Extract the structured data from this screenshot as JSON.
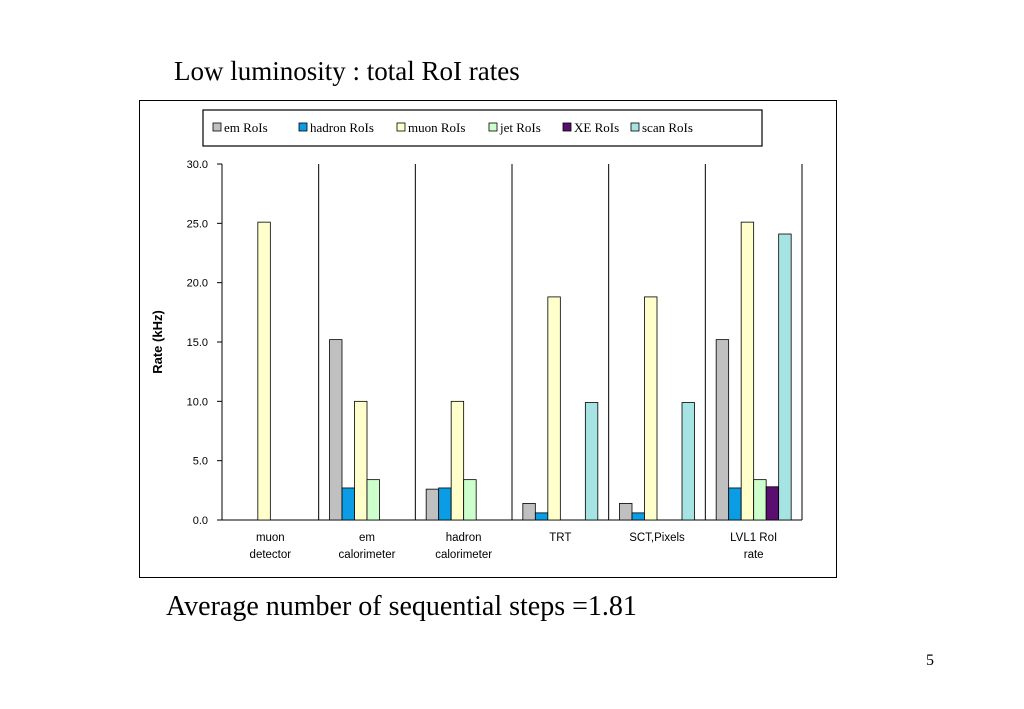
{
  "slide": {
    "title": "Low luminosity : total RoI rates",
    "footer": "Average number of sequential steps =1.81",
    "page_number": "5"
  },
  "chart_data": {
    "type": "bar",
    "categories": [
      [
        "muon",
        "detector"
      ],
      [
        "em",
        "calorimeter"
      ],
      [
        "hadron",
        "calorimeter"
      ],
      [
        "TRT"
      ],
      [
        "SCT,Pixels"
      ],
      [
        "LVL1 RoI",
        "rate"
      ]
    ],
    "series": [
      {
        "name": "em RoIs",
        "color": "#c0c0c0",
        "values": [
          0,
          15.2,
          2.6,
          1.4,
          1.4,
          15.2
        ]
      },
      {
        "name": "hadron RoIs",
        "color": "#0b9ce6",
        "values": [
          0,
          2.7,
          2.7,
          0.6,
          0.6,
          2.7
        ]
      },
      {
        "name": "muon RoIs",
        "color": "#ffffcc",
        "values": [
          25.1,
          10.0,
          10.0,
          18.8,
          18.8,
          25.1
        ]
      },
      {
        "name": "jet RoIs",
        "color": "#ccffcc",
        "values": [
          0,
          3.4,
          3.4,
          0,
          0,
          3.4
        ]
      },
      {
        "name": "XE RoIs",
        "color": "#5a0f70",
        "values": [
          0,
          0,
          0,
          0,
          0,
          2.8
        ]
      },
      {
        "name": "scan RoIs",
        "color": "#a6e3e3",
        "values": [
          0,
          0,
          0,
          9.9,
          9.9,
          24.1
        ]
      }
    ],
    "ylabel": "Rate (kHz)",
    "ylim": [
      0,
      30
    ],
    "yticks": [
      "0.0",
      "5.0",
      "10.0",
      "15.0",
      "20.0",
      "25.0",
      "30.0"
    ],
    "grid": "vertical category separators",
    "legend": "top"
  }
}
